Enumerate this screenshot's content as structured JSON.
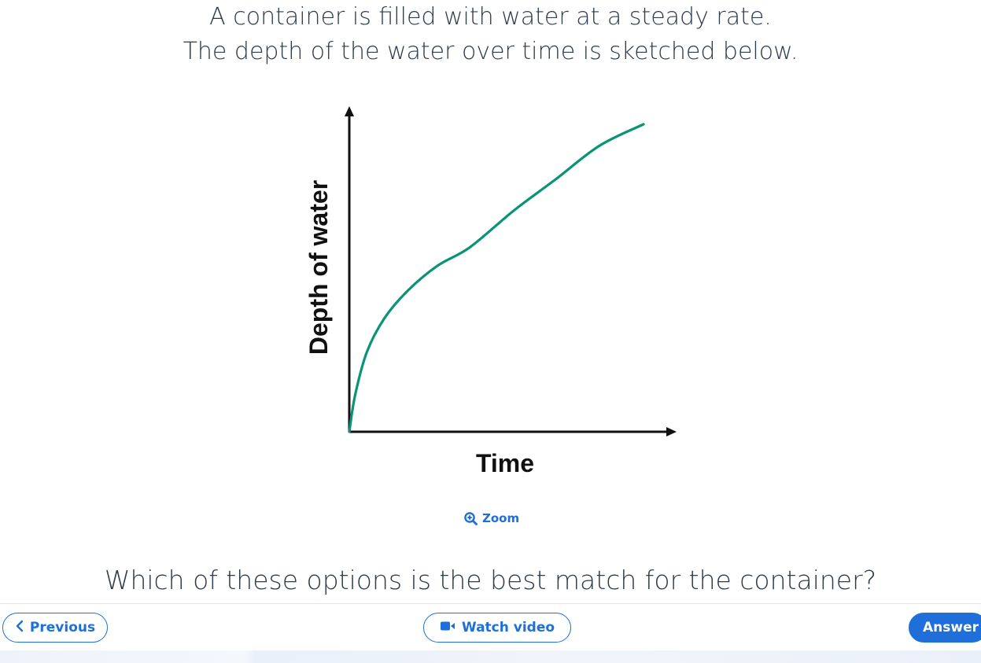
{
  "question": {
    "line1": "A container is filled with water at a steady rate.",
    "line2": "The depth of the water over time is sketched below."
  },
  "chart_data": {
    "type": "line",
    "title": "",
    "xlabel": "Time",
    "ylabel": "Depth of water",
    "ticks": false,
    "grid": false,
    "line_color": "#0a9474",
    "series": [
      {
        "x": [
          0,
          0.02,
          0.06,
          0.12,
          0.2,
          0.3,
          0.41,
          0.56,
          0.7,
          0.85,
          1.0
        ],
        "y": [
          0,
          0.12,
          0.26,
          0.37,
          0.46,
          0.54,
          0.6,
          0.72,
          0.82,
          0.93,
          1.0
        ]
      }
    ]
  },
  "zoom": {
    "label": "Zoom",
    "icon": "zoom-in-icon"
  },
  "prompt": "Which of these options is the best match for the container?",
  "nav": {
    "previous_label": "Previous",
    "video_label": "Watch video",
    "answer_label": "Answer"
  },
  "colors": {
    "accent": "#1e6fd9",
    "curve": "#0a9474",
    "text": "#2e3b4a"
  }
}
